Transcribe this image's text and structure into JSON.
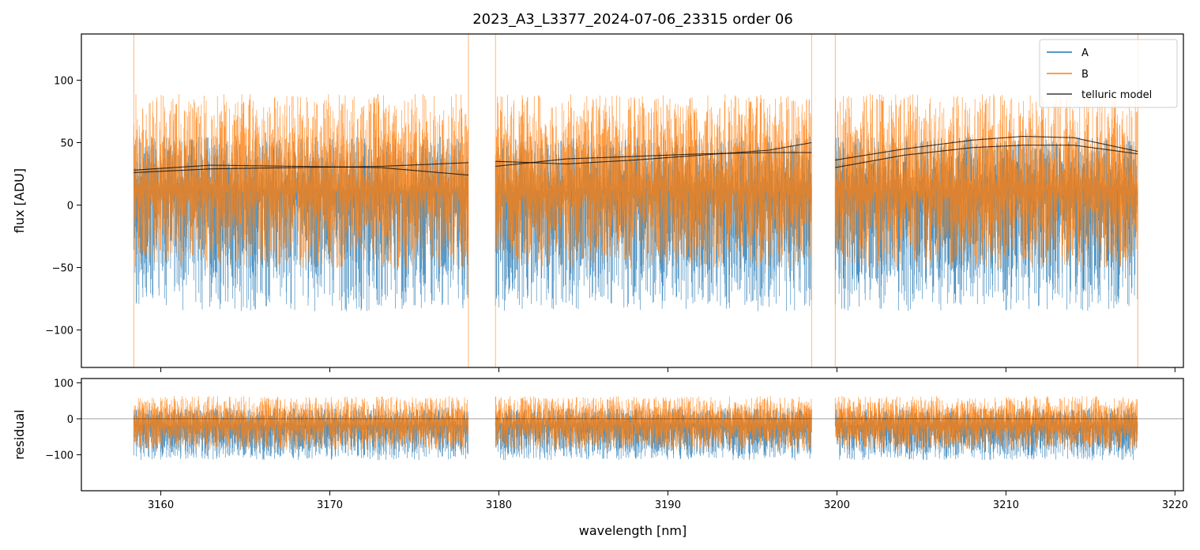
{
  "chart_data": {
    "type": "line",
    "title": "2023_A3_L3377_2024-07-06_23315  order 06",
    "colors": {
      "A": "#1f77b4",
      "B": "#ff7f0e",
      "model": "#000000"
    },
    "segments": [
      [
        3158.4,
        3178.2
      ],
      [
        3179.8,
        3198.5
      ],
      [
        3199.9,
        3217.8
      ]
    ],
    "upper": {
      "ylabel": "flux [ADU]",
      "ylim": [
        -130,
        137
      ],
      "yticks": [
        -100,
        -50,
        0,
        50,
        100
      ],
      "ytick_labels": [
        "−100",
        "−50",
        "0",
        "50",
        "100"
      ],
      "series": [
        {
          "name": "A",
          "color": "#1f77b4",
          "mean": 10,
          "pos_spread": 45,
          "neg_spread": 95
        },
        {
          "name": "B",
          "color": "#ff7f0e",
          "mean": 14,
          "pos_spread": 75,
          "neg_spread": 65
        }
      ],
      "model_curves": [
        {
          "x": [
            3158.4,
            3163,
            3168,
            3173,
            3178.2
          ],
          "y": [
            26,
            29,
            30,
            31,
            34
          ]
        },
        {
          "x": [
            3158.4,
            3163,
            3168,
            3173,
            3178.2
          ],
          "y": [
            28,
            32,
            31,
            30,
            24
          ]
        },
        {
          "x": [
            3179.8,
            3184,
            3188,
            3192,
            3196,
            3198.5
          ],
          "y": [
            31,
            37,
            39,
            41,
            42,
            42
          ]
        },
        {
          "x": [
            3179.8,
            3184,
            3188,
            3192,
            3196,
            3198.5
          ],
          "y": [
            35,
            33,
            36,
            40,
            44,
            50
          ]
        },
        {
          "x": [
            3199.9,
            3204,
            3208,
            3211,
            3214,
            3217.8
          ],
          "y": [
            30,
            40,
            46,
            48,
            48,
            41
          ]
        },
        {
          "x": [
            3199.9,
            3204,
            3208,
            3211,
            3214,
            3217.8
          ],
          "y": [
            36,
            45,
            52,
            55,
            54,
            43
          ]
        }
      ],
      "legend": {
        "placement": "top-right",
        "entries": [
          {
            "label": "A",
            "color": "#1f77b4"
          },
          {
            "label": "B",
            "color": "#ff7f0e"
          },
          {
            "label": "telluric model",
            "color": "#3a3a3a"
          }
        ]
      }
    },
    "lower": {
      "ylabel": "residual",
      "ylim": [
        -200,
        112
      ],
      "yticks": [
        -100,
        0,
        100
      ],
      "ytick_labels": [
        "−100",
        "0",
        "100"
      ],
      "zero_line": 0,
      "series": [
        {
          "name": "A",
          "color": "#1f77b4",
          "mean": -20,
          "pos_spread": 50,
          "neg_spread": 95
        },
        {
          "name": "B",
          "color": "#ff7f0e",
          "mean": -12,
          "pos_spread": 75,
          "neg_spread": 75
        }
      ]
    },
    "xaxis": {
      "xlabel": "wavelength [nm]",
      "xlim": [
        3155.3,
        3220.5
      ],
      "xticks": [
        3160,
        3170,
        3180,
        3190,
        3200,
        3210,
        3220
      ],
      "xtick_labels": [
        "3160",
        "3170",
        "3180",
        "3190",
        "3200",
        "3210",
        "3220"
      ]
    }
  }
}
